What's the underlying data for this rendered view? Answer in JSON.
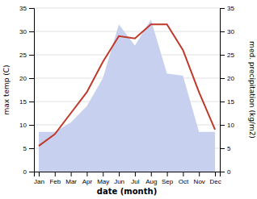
{
  "chart_data": {
    "type": "line",
    "x_label": "date (month)",
    "y_label": "max temp (C)",
    "y2_label": "med. precipitation (kg/m2)",
    "categories": [
      "Jan",
      "Feb",
      "Mar",
      "Apr",
      "May",
      "Jun",
      "Jul",
      "Aug",
      "Sep",
      "Oct",
      "Nov",
      "Dec"
    ],
    "series": [
      {
        "type": "area",
        "color": "#c8d0f0",
        "axis": "y2",
        "values": [
          8.5,
          8.5,
          10.5,
          14.0,
          20.0,
          31.5,
          27.0,
          32.5,
          21.0,
          20.5,
          8.5,
          8.5
        ]
      },
      {
        "type": "line",
        "color": "#c0392b",
        "values": [
          5.5,
          8.0,
          12.5,
          17.0,
          23.5,
          29.0,
          28.5,
          31.5,
          31.5,
          26.0,
          17.0,
          9.0
        ]
      }
    ],
    "ylim": [
      0,
      35
    ],
    "yticks": [
      0,
      5,
      10,
      15,
      20,
      25,
      30,
      35
    ],
    "y2lim": [
      0,
      35
    ],
    "y2ticks": [
      0,
      5,
      10,
      15,
      20,
      25,
      30,
      35
    ],
    "grid": true
  }
}
